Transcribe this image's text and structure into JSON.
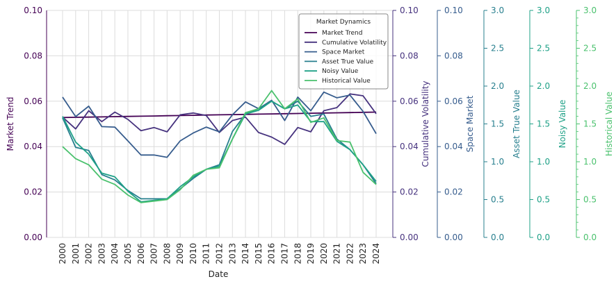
{
  "chart_data": {
    "type": "line",
    "xlabel": "Date",
    "x": [
      "2000",
      "2001",
      "2002",
      "2003",
      "2004",
      "2005",
      "2006",
      "2007",
      "2008",
      "2009",
      "2010",
      "2011",
      "2012",
      "2013",
      "2014",
      "2015",
      "2016",
      "2017",
      "2018",
      "2019",
      "2020",
      "2021",
      "2022",
      "2023",
      "2024"
    ],
    "grid": true,
    "legend": {
      "title": "Market Dynamics",
      "placement": "top-right"
    },
    "axes": [
      {
        "key": "market_trend",
        "label": "Market Trend",
        "ylim": [
          0,
          0.1
        ],
        "ticks": [
          "0.00",
          "0.02",
          "0.04",
          "0.06",
          "0.08",
          "0.10"
        ],
        "color": "#440154"
      },
      {
        "key": "cumulative_volatility",
        "label": "Cumulative Volatility",
        "ylim": [
          0,
          0.1
        ],
        "ticks": [
          "0.00",
          "0.02",
          "0.04",
          "0.06",
          "0.08",
          "0.10"
        ],
        "color": "#46327e"
      },
      {
        "key": "space_market",
        "label": "Space Market",
        "ylim": [
          0,
          0.1
        ],
        "ticks": [
          "0.00",
          "0.02",
          "0.04",
          "0.06",
          "0.08",
          "0.10"
        ],
        "color": "#365c8d"
      },
      {
        "key": "asset_true_value",
        "label": "Asset True Value",
        "ylim": [
          0,
          3.0
        ],
        "ticks": [
          "0.0",
          "0.5",
          "1.0",
          "1.5",
          "2.0",
          "2.5",
          "3.0"
        ],
        "color": "#277f8e"
      },
      {
        "key": "noisy_value",
        "label": "Noisy Value",
        "ylim": [
          0,
          3.0
        ],
        "ticks": [
          "0.0",
          "0.5",
          "1.0",
          "1.5",
          "2.0",
          "2.5",
          "3.0"
        ],
        "color": "#1fa187"
      },
      {
        "key": "historical_value",
        "label": "Historical Value",
        "ylim": [
          0,
          3.0
        ],
        "ticks": [
          "0.0",
          "0.5",
          "1.0",
          "1.5",
          "2.0",
          "2.5",
          "3.0"
        ],
        "color": "#4ac16d"
      }
    ],
    "series": [
      {
        "name": "Market Trend",
        "axis": "market_trend",
        "color": "#440154",
        "values": [
          0.0528,
          0.0529,
          0.053,
          0.0531,
          0.0532,
          0.0533,
          0.0534,
          0.0535,
          0.0536,
          0.0537,
          0.0538,
          0.0539,
          0.054,
          0.0541,
          0.0542,
          0.0543,
          0.0544,
          0.0545,
          0.0546,
          0.0547,
          0.0548,
          0.0549,
          0.055,
          0.0551,
          0.0552
        ]
      },
      {
        "name": "Cumulative Volatility",
        "axis": "cumulative_volatility",
        "color": "#46327e",
        "values": [
          0.053,
          0.0478,
          0.0558,
          0.051,
          0.0552,
          0.052,
          0.047,
          0.0484,
          0.0465,
          0.054,
          0.0548,
          0.0537,
          0.0462,
          0.0515,
          0.053,
          0.0462,
          0.0442,
          0.041,
          0.0484,
          0.0465,
          0.0558,
          0.0572,
          0.0632,
          0.0624,
          0.0545
        ]
      },
      {
        "name": "Space Market",
        "axis": "space_market",
        "color": "#365c8d",
        "values": [
          0.0618,
          0.0532,
          0.0578,
          0.0488,
          0.0486,
          0.0425,
          0.0363,
          0.0363,
          0.0353,
          0.0425,
          0.046,
          0.0486,
          0.0465,
          0.054,
          0.0597,
          0.0567,
          0.0604,
          0.0515,
          0.0618,
          0.0558,
          0.064,
          0.0615,
          0.0627,
          0.0555,
          0.0457
        ]
      },
      {
        "name": "Asset True Value",
        "axis": "asset_true_value",
        "color": "#277f8e",
        "values": [
          1.58,
          1.19,
          1.15,
          0.83,
          0.76,
          0.62,
          0.51,
          0.51,
          0.51,
          0.64,
          0.78,
          0.9,
          0.96,
          1.4,
          1.63,
          1.7,
          1.8,
          1.7,
          1.8,
          1.6,
          1.63,
          1.3,
          1.16,
          0.96,
          0.71
        ]
      },
      {
        "name": "Noisy Value",
        "axis": "noisy_value",
        "color": "#1fa187",
        "values": [
          1.6,
          1.26,
          1.1,
          0.85,
          0.8,
          0.61,
          0.47,
          0.49,
          0.51,
          0.67,
          0.8,
          0.9,
          0.94,
          1.3,
          1.63,
          1.68,
          1.8,
          1.7,
          1.75,
          1.53,
          1.53,
          1.27,
          1.16,
          0.96,
          0.74
        ]
      },
      {
        "name": "Historical Value",
        "axis": "historical_value",
        "color": "#4ac16d",
        "values": [
          1.2,
          1.04,
          0.96,
          0.77,
          0.7,
          0.56,
          0.46,
          0.48,
          0.5,
          0.63,
          0.82,
          0.9,
          0.92,
          1.3,
          1.65,
          1.7,
          1.94,
          1.7,
          1.83,
          1.52,
          1.58,
          1.28,
          1.26,
          0.86,
          0.7
        ]
      }
    ]
  }
}
